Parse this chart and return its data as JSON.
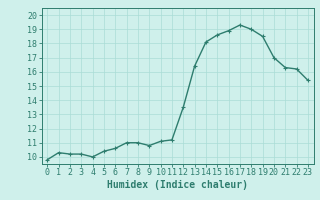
{
  "x": [
    0,
    1,
    2,
    3,
    4,
    5,
    6,
    7,
    8,
    9,
    10,
    11,
    12,
    13,
    14,
    15,
    16,
    17,
    18,
    19,
    20,
    21,
    22,
    23
  ],
  "y": [
    9.8,
    10.3,
    10.2,
    10.2,
    10.0,
    10.4,
    10.6,
    11.0,
    11.0,
    10.8,
    11.1,
    11.2,
    13.5,
    16.4,
    18.1,
    18.6,
    18.9,
    19.3,
    19.0,
    18.5,
    17.0,
    16.3,
    16.2,
    15.4
  ],
  "line_color": "#2e7d6e",
  "marker": "+",
  "marker_size": 3,
  "bg_color": "#cff0eb",
  "grid_color": "#aaddd6",
  "xlabel": "Humidex (Indice chaleur)",
  "xlim": [
    -0.5,
    23.5
  ],
  "ylim": [
    9.5,
    20.5
  ],
  "yticks": [
    10,
    11,
    12,
    13,
    14,
    15,
    16,
    17,
    18,
    19,
    20
  ],
  "xticks": [
    0,
    1,
    2,
    3,
    4,
    5,
    6,
    7,
    8,
    9,
    10,
    11,
    12,
    13,
    14,
    15,
    16,
    17,
    18,
    19,
    20,
    21,
    22,
    23
  ],
  "xlabel_fontsize": 7,
  "tick_fontsize": 6,
  "linewidth": 1.0,
  "markeredgewidth": 0.8
}
